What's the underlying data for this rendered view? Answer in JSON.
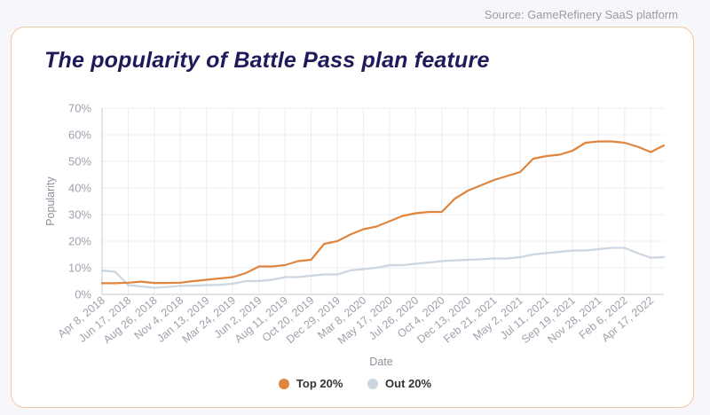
{
  "source_text": "Source: GameRefinery SaaS platform",
  "chart_data": {
    "type": "line",
    "title": "The popularity of Battle Pass plan feature",
    "xlabel": "Date",
    "ylabel": "Popularity",
    "ylim": [
      0,
      70
    ],
    "yticks": [
      "0%",
      "10%",
      "20%",
      "30%",
      "40%",
      "50%",
      "60%",
      "70%"
    ],
    "grid": true,
    "legend_position": "bottom-center",
    "xtick_labels": [
      "Apr 8, 2018",
      "Jun 17, 2018",
      "Aug 26, 2018",
      "Nov 4, 2018",
      "Jan 13, 2019",
      "Mar 24, 2019",
      "Jun 2, 2019",
      "Aug 11, 2019",
      "Oct 20, 2019",
      "Dec 29, 2019",
      "Mar 8, 2020",
      "May 17, 2020",
      "Jul 26, 2020",
      "Oct 4, 2020",
      "Dec 13, 2020",
      "Feb 21, 2021",
      "May 2, 2021",
      "Jul 11, 2021",
      "Sep 19, 2021",
      "Nov 28, 2021",
      "Feb 6, 2022",
      "Apr 17, 2022"
    ],
    "x": [
      "2018-04-08",
      "2018-05-13",
      "2018-06-17",
      "2018-07-22",
      "2018-08-26",
      "2018-09-30",
      "2018-11-04",
      "2018-12-09",
      "2019-01-13",
      "2019-02-17",
      "2019-03-24",
      "2019-04-28",
      "2019-06-02",
      "2019-07-07",
      "2019-08-11",
      "2019-09-15",
      "2019-10-20",
      "2019-11-24",
      "2019-12-29",
      "2020-02-02",
      "2020-03-08",
      "2020-04-12",
      "2020-05-17",
      "2020-06-21",
      "2020-07-26",
      "2020-08-30",
      "2020-10-04",
      "2020-11-08",
      "2020-12-13",
      "2021-01-17",
      "2021-02-21",
      "2021-03-28",
      "2021-05-02",
      "2021-06-06",
      "2021-07-11",
      "2021-08-15",
      "2021-09-19",
      "2021-10-24",
      "2021-11-28",
      "2022-01-02",
      "2022-02-06",
      "2022-03-13",
      "2022-04-17",
      "2022-05-22"
    ],
    "series": [
      {
        "name": "Top 20%",
        "color": "#e0853e",
        "values": [
          4.2,
          4.2,
          4.4,
          4.8,
          4.3,
          4.3,
          4.4,
          5.0,
          5.5,
          6.0,
          6.5,
          8.0,
          10.5,
          10.5,
          11.0,
          12.5,
          13.0,
          19.0,
          20.0,
          22.5,
          24.5,
          25.5,
          27.5,
          29.5,
          30.5,
          31.0,
          31.0,
          36.0,
          39.0,
          41.0,
          43.0,
          44.5,
          46.0,
          51.0,
          52.0,
          52.5,
          54.0,
          57.0,
          57.5,
          57.5,
          57.0,
          55.5,
          53.5,
          56.0
        ]
      },
      {
        "name": "Out 20%",
        "color": "#cdd6e0",
        "values": [
          9.0,
          8.5,
          3.5,
          3.0,
          2.5,
          2.8,
          3.2,
          3.3,
          3.5,
          3.6,
          4.0,
          5.0,
          5.0,
          5.5,
          6.5,
          6.5,
          7.0,
          7.5,
          7.5,
          9.0,
          9.5,
          10.0,
          11.0,
          11.0,
          11.5,
          12.0,
          12.5,
          12.8,
          13.0,
          13.2,
          13.5,
          13.5,
          14.0,
          15.0,
          15.5,
          16.0,
          16.5,
          16.5,
          17.0,
          17.5,
          17.5,
          15.5,
          13.8,
          14.0
        ]
      }
    ]
  }
}
